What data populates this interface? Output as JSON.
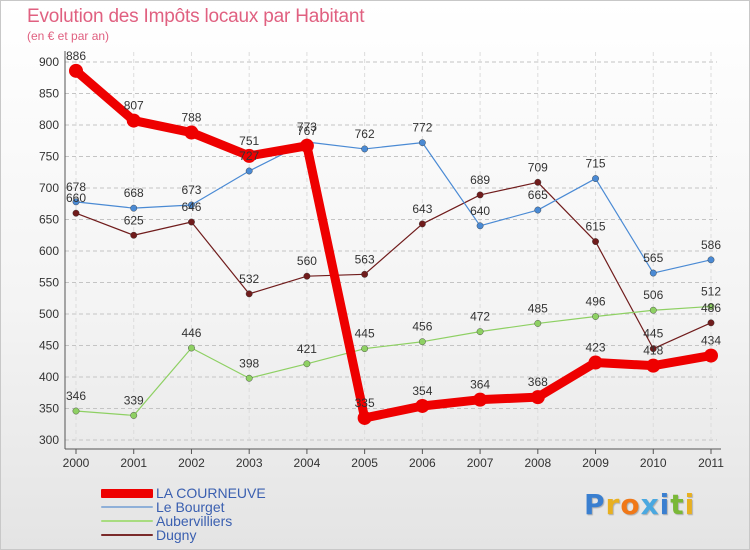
{
  "chart_data": {
    "type": "line",
    "title": "Evolution des Impôts locaux par Habitant",
    "subtitle": "(en € et par an)",
    "xlabel": "",
    "ylabel": "",
    "categories": [
      "2000",
      "2001",
      "2002",
      "2003",
      "2004",
      "2005",
      "2006",
      "2007",
      "2008",
      "2009",
      "2010",
      "2011"
    ],
    "ylim": [
      300,
      900
    ],
    "yticks": [
      300,
      350,
      400,
      450,
      500,
      550,
      600,
      650,
      700,
      750,
      800,
      850,
      900
    ],
    "grid": "horizontal-dashed",
    "legend": "bottom-left",
    "series": [
      {
        "name": "Dugny",
        "color": "#701c1c",
        "values": [
          660,
          625,
          646,
          532,
          560,
          563,
          643,
          689,
          709,
          615,
          445,
          486
        ]
      },
      {
        "name": "Aubervilliers",
        "color": "#8ed063",
        "values": [
          346,
          339,
          446,
          398,
          421,
          445,
          456,
          472,
          485,
          496,
          506,
          512
        ]
      },
      {
        "name": "Le Bourget",
        "color": "#4a8ad4",
        "values": [
          678,
          668,
          673,
          727,
          773,
          762,
          772,
          640,
          665,
          715,
          565,
          586
        ]
      },
      {
        "name": "LA COURNEUVE",
        "color": "#ee0000",
        "values": [
          886,
          807,
          788,
          751,
          767,
          335,
          354,
          364,
          368,
          423,
          418,
          434
        ]
      }
    ]
  },
  "legend": {
    "items": [
      {
        "label": "LA COURNEUVE",
        "color": "#ee0000"
      },
      {
        "label": "Le Bourget",
        "color": "#8fb0d8"
      },
      {
        "label": "Aubervilliers",
        "color": "#a8dc80"
      },
      {
        "label": "Dugny",
        "color": "#7a2a2a"
      }
    ]
  },
  "brand": {
    "letters": [
      {
        "ch": "P",
        "color": "#3a7fd0"
      },
      {
        "ch": "r",
        "color": "#e8b020"
      },
      {
        "ch": "o",
        "color": "#f07818"
      },
      {
        "ch": "x",
        "color": "#4aa8e0"
      },
      {
        "ch": "i",
        "color": "#3a7fd0"
      },
      {
        "ch": "t",
        "color": "#7ab838"
      },
      {
        "ch": "i",
        "color": "#e8b020"
      }
    ]
  }
}
